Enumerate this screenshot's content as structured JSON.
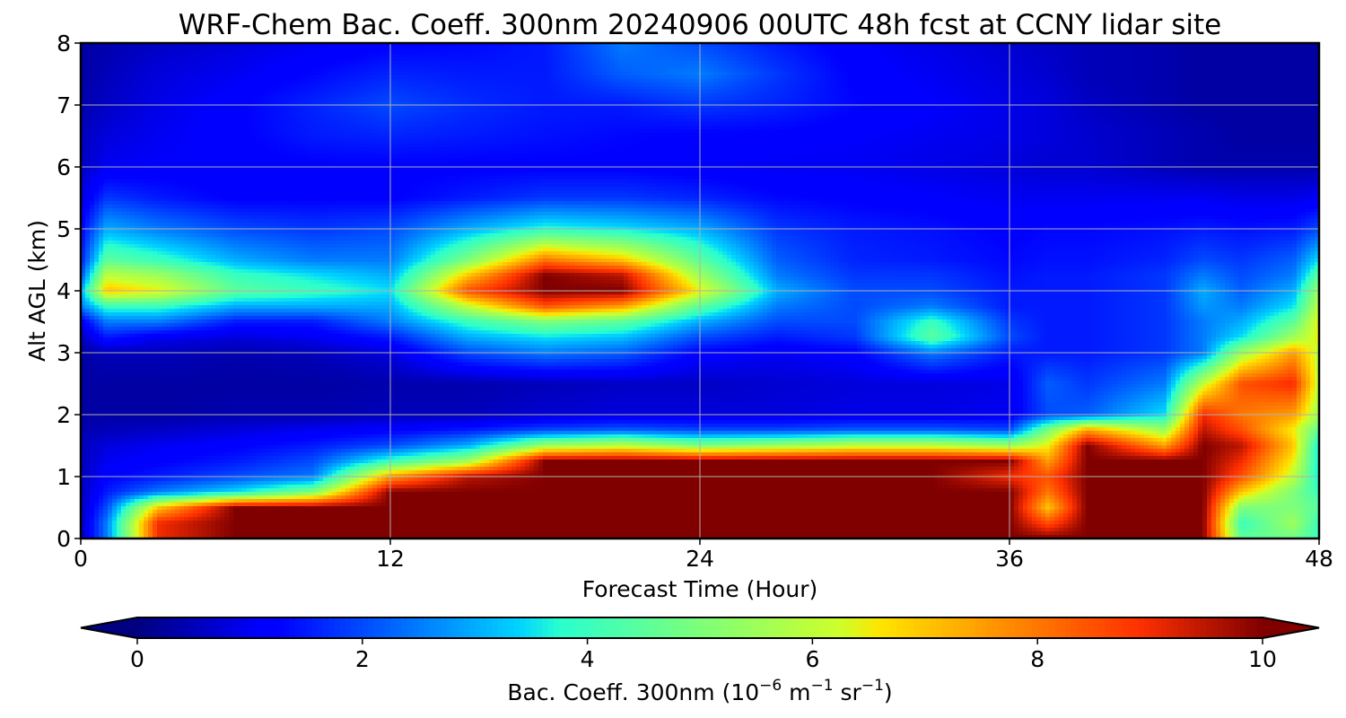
{
  "chart_data": {
    "type": "heatmap",
    "title": "WRF-Chem Bac. Coeff. 300nm  20240906 00UTC 48h fcst at CCNY lidar site",
    "xlabel": "Forecast Time (Hour)",
    "ylabel": "Alt AGL (km)",
    "xlim": [
      0,
      48
    ],
    "ylim": [
      0,
      8
    ],
    "x_ticks": [
      "0",
      "12",
      "24",
      "36",
      "48"
    ],
    "y_ticks": [
      "0",
      "1",
      "2",
      "3",
      "4",
      "5",
      "6",
      "7",
      "8"
    ],
    "grid": true,
    "colormap": "jet",
    "colorbar": {
      "label_prefix": "Bac. Coeff. 300nm  (10",
      "label_exp1": "−6",
      "label_mid": " m",
      "label_exp2": "−1",
      "label_mid2": " sr",
      "label_exp3": "−1",
      "label_suffix": ")",
      "range": [
        0,
        10
      ],
      "extend": "both",
      "ticks": [
        "0",
        "2",
        "4",
        "6",
        "8",
        "10"
      ]
    },
    "x_hours": [
      0,
      1,
      3,
      6,
      9,
      12,
      15,
      18,
      21,
      24,
      27,
      30,
      33,
      36,
      37.5,
      39,
      42,
      43.5,
      45,
      47,
      48
    ],
    "altitudes_km": [
      0,
      0.25,
      0.5,
      0.75,
      1,
      1.25,
      1.5,
      1.75,
      2,
      2.5,
      3,
      3.25,
      3.5,
      3.75,
      4,
      4.25,
      4.5,
      5,
      5.5,
      6,
      6.5,
      7,
      7.5,
      8
    ],
    "values": [
      [
        0.5,
        2.5,
        9.0,
        10.0,
        10.0,
        10.0,
        10.0,
        10.0,
        10.0,
        10.0,
        10.0,
        10.0,
        10.0,
        10.0,
        10.0,
        10.0,
        10.0,
        10.0,
        4.5,
        4.8,
        4.0
      ],
      [
        0.5,
        2.5,
        9.0,
        10.0,
        10.0,
        10.0,
        10.0,
        10.0,
        10.0,
        10.0,
        10.0,
        10.0,
        10.0,
        10.0,
        8.5,
        10.0,
        10.0,
        10.0,
        4.0,
        5.5,
        4.0
      ],
      [
        0.5,
        2.0,
        7.0,
        10.0,
        10.0,
        10.0,
        10.0,
        10.0,
        10.0,
        10.0,
        10.0,
        10.0,
        10.0,
        10.0,
        7.0,
        10.0,
        10.0,
        10.0,
        5.0,
        5.0,
        4.5
      ],
      [
        0.5,
        1.5,
        2.5,
        3.5,
        5.0,
        10.0,
        10.0,
        10.0,
        10.0,
        10.0,
        10.0,
        10.0,
        10.0,
        10.0,
        8.0,
        10.0,
        10.0,
        10.0,
        7.0,
        5.0,
        4.0
      ],
      [
        0.5,
        1.2,
        1.5,
        2.0,
        2.5,
        7.5,
        9.5,
        10.0,
        10.0,
        10.0,
        10.0,
        10.0,
        10.0,
        9.0,
        8.5,
        10.0,
        10.0,
        10.0,
        8.5,
        6.0,
        3.5
      ],
      [
        0.5,
        1.0,
        1.2,
        1.5,
        2.0,
        4.0,
        5.5,
        10.0,
        10.0,
        10.0,
        10.0,
        10.0,
        10.0,
        10.0,
        7.5,
        10.0,
        10.0,
        10.0,
        9.0,
        6.5,
        3.5
      ],
      [
        0.5,
        0.8,
        1.0,
        1.2,
        1.5,
        2.0,
        3.0,
        5.5,
        6.0,
        5.0,
        5.5,
        6.0,
        6.0,
        5.5,
        6.5,
        10.0,
        7.5,
        10.0,
        9.5,
        7.0,
        3.5
      ],
      [
        0.4,
        0.5,
        0.6,
        0.8,
        1.0,
        1.2,
        1.5,
        2.0,
        2.2,
        2.0,
        2.0,
        2.2,
        2.2,
        2.0,
        5.0,
        7.5,
        5.5,
        9.5,
        8.5,
        6.5,
        4.5
      ],
      [
        0.3,
        0.3,
        0.3,
        0.4,
        0.4,
        0.5,
        0.5,
        0.7,
        0.8,
        0.8,
        0.8,
        0.9,
        0.9,
        1.0,
        2.0,
        2.2,
        3.5,
        9.0,
        8.0,
        7.5,
        5.5
      ],
      [
        0.3,
        0.3,
        0.3,
        0.3,
        0.3,
        0.4,
        0.4,
        0.5,
        0.6,
        0.6,
        0.7,
        0.8,
        0.8,
        0.9,
        2.2,
        1.8,
        2.5,
        6.0,
        8.5,
        9.0,
        6.0
      ],
      [
        0.3,
        0.5,
        0.5,
        0.4,
        0.5,
        0.8,
        2.0,
        2.5,
        2.2,
        1.2,
        1.0,
        1.2,
        2.5,
        1.5,
        1.5,
        1.5,
        1.8,
        2.5,
        5.5,
        7.5,
        6.0
      ],
      [
        0.5,
        1.5,
        1.0,
        0.8,
        1.0,
        1.5,
        3.0,
        3.5,
        3.2,
        2.0,
        1.5,
        1.8,
        4.5,
        2.0,
        1.5,
        1.5,
        1.8,
        2.5,
        3.5,
        5.5,
        6.5
      ],
      [
        1.0,
        2.5,
        2.5,
        1.5,
        1.5,
        2.5,
        4.0,
        5.0,
        4.5,
        3.0,
        2.0,
        2.0,
        4.0,
        1.8,
        1.5,
        1.5,
        1.8,
        2.5,
        3.0,
        4.5,
        6.5
      ],
      [
        2.5,
        4.0,
        4.0,
        3.0,
        3.0,
        3.0,
        6.0,
        8.5,
        7.5,
        4.5,
        2.5,
        2.0,
        2.5,
        1.5,
        1.5,
        1.5,
        1.8,
        2.8,
        2.5,
        3.5,
        6.0
      ],
      [
        3.0,
        7.0,
        6.5,
        4.5,
        4.0,
        3.5,
        8.5,
        10.0,
        10.0,
        6.5,
        3.0,
        2.0,
        2.0,
        1.5,
        1.5,
        1.5,
        1.8,
        3.0,
        2.2,
        3.0,
        5.5
      ],
      [
        2.0,
        6.0,
        5.5,
        4.0,
        3.5,
        3.0,
        7.0,
        10.0,
        9.5,
        5.5,
        2.5,
        1.8,
        1.8,
        1.4,
        1.5,
        1.5,
        1.8,
        2.5,
        2.0,
        2.5,
        4.5
      ],
      [
        1.5,
        4.5,
        4.0,
        3.0,
        2.5,
        2.5,
        5.0,
        8.0,
        7.0,
        4.5,
        2.2,
        1.6,
        1.5,
        1.3,
        1.4,
        1.4,
        1.6,
        2.0,
        1.8,
        2.2,
        3.5
      ],
      [
        1.2,
        3.0,
        2.5,
        2.0,
        1.8,
        2.0,
        3.0,
        3.8,
        3.5,
        3.0,
        1.8,
        1.5,
        1.4,
        1.2,
        1.3,
        1.3,
        1.4,
        1.5,
        1.4,
        1.5,
        2.0
      ],
      [
        0.8,
        1.8,
        1.5,
        1.2,
        1.2,
        1.2,
        1.5,
        1.8,
        1.8,
        1.6,
        1.3,
        1.2,
        1.1,
        1.0,
        1.0,
        1.0,
        1.0,
        1.0,
        0.9,
        0.9,
        1.0
      ],
      [
        0.6,
        1.0,
        1.1,
        1.1,
        1.2,
        1.2,
        1.2,
        1.2,
        1.2,
        1.1,
        1.0,
        1.0,
        0.9,
        0.8,
        0.7,
        0.7,
        0.5,
        0.4,
        0.4,
        0.4,
        0.4
      ],
      [
        0.5,
        0.8,
        1.0,
        1.2,
        1.5,
        1.6,
        1.5,
        1.4,
        1.3,
        1.2,
        1.2,
        1.1,
        1.0,
        0.9,
        0.8,
        0.7,
        0.5,
        0.4,
        0.3,
        0.3,
        0.3
      ],
      [
        0.4,
        0.6,
        0.9,
        1.2,
        1.6,
        2.0,
        1.7,
        1.5,
        1.5,
        1.8,
        1.6,
        1.3,
        1.1,
        0.9,
        0.8,
        0.6,
        0.4,
        0.3,
        0.3,
        0.3,
        0.3
      ],
      [
        0.3,
        0.5,
        0.8,
        1.0,
        1.3,
        1.6,
        1.5,
        1.5,
        2.2,
        2.5,
        1.8,
        1.2,
        1.0,
        0.8,
        0.7,
        0.5,
        0.4,
        0.3,
        0.3,
        0.3,
        0.3
      ],
      [
        0.3,
        0.4,
        0.6,
        0.8,
        1.0,
        1.2,
        1.3,
        1.5,
        2.5,
        2.0,
        1.5,
        1.1,
        0.9,
        0.7,
        0.6,
        0.5,
        0.4,
        0.3,
        0.3,
        0.3,
        0.3
      ]
    ]
  }
}
